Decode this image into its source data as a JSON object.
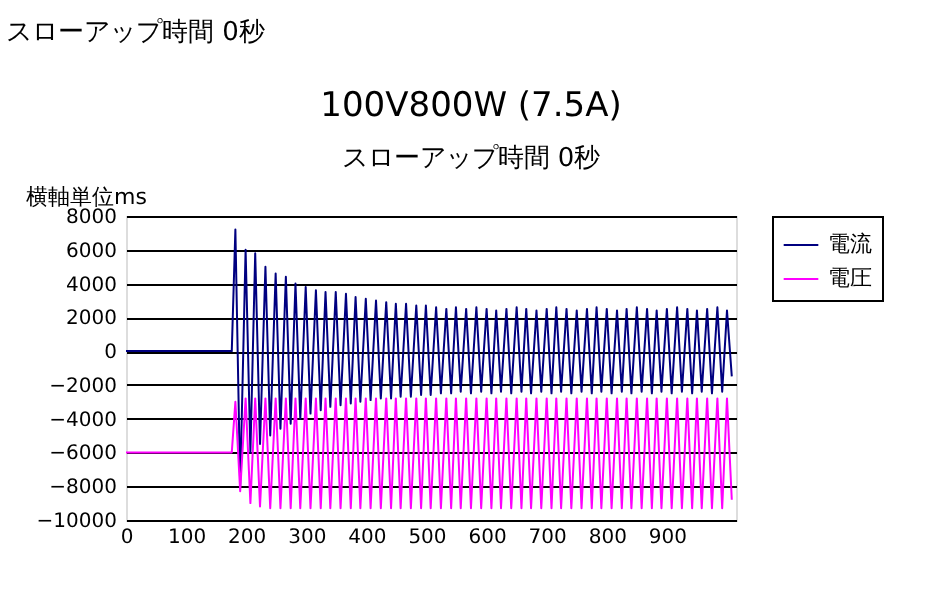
{
  "chart_data": {
    "type": "line",
    "title": "100V800W (7.5A)",
    "subtitle": "スローアップ時間 0秒",
    "annotations": [
      "スローアップ時間 0秒",
      "横軸単位ms"
    ],
    "x": [
      0,
      176,
      182,
      190,
      199,
      207,
      215,
      223,
      232,
      240,
      249,
      257,
      266,
      274,
      282,
      290,
      299,
      307,
      316,
      324,
      332,
      340,
      349,
      357,
      366,
      374,
      382,
      390,
      399,
      407,
      416,
      424,
      433,
      441,
      449,
      457,
      466,
      474,
      483,
      491,
      499,
      507,
      516,
      524,
      533,
      541,
      549,
      557,
      566,
      574,
      583,
      591,
      600,
      608,
      616,
      624,
      633,
      641,
      650,
      658,
      666,
      674,
      683,
      691,
      700,
      708,
      716,
      724,
      733,
      741,
      750,
      758,
      767,
      775,
      783,
      791,
      800,
      808,
      817,
      825,
      833,
      841,
      850,
      858,
      867,
      875,
      883,
      891,
      900,
      908,
      917,
      925,
      934,
      942,
      950,
      958,
      967,
      975,
      984,
      992,
      1000,
      1008
    ],
    "series": [
      {
        "name": "電流",
        "color": "#000080",
        "values": [
          0,
          0,
          7200,
          -8000,
          6000,
          -6000,
          5800,
          -5500,
          5000,
          -5000,
          4600,
          -4600,
          4400,
          -4300,
          4000,
          -4000,
          3800,
          -3700,
          3600,
          -3500,
          3500,
          -3300,
          3500,
          -3200,
          3400,
          -3100,
          3200,
          -3000,
          3100,
          -2900,
          3000,
          -2800,
          2900,
          -2800,
          2800,
          -2700,
          2800,
          -2700,
          2700,
          -2600,
          2700,
          -2600,
          2600,
          -2500,
          2500,
          -2500,
          2600,
          -2400,
          2500,
          -2500,
          2600,
          -2400,
          2500,
          -2500,
          2400,
          -2400,
          2500,
          -2500,
          2600,
          -2400,
          2500,
          -2500,
          2400,
          -2400,
          2500,
          -2500,
          2600,
          -2400,
          2500,
          -2500,
          2400,
          -2400,
          2500,
          -2500,
          2600,
          -2400,
          2500,
          -2500,
          2400,
          -2400,
          2500,
          -2500,
          2600,
          -2400,
          2500,
          -2500,
          2400,
          -2400,
          2500,
          -2500,
          2600,
          -2400,
          2500,
          -2500,
          2400,
          -2400,
          2500,
          -2500,
          2600,
          -2400,
          2400,
          -1500
        ]
      },
      {
        "name": "電圧",
        "color": "#ff00ff",
        "values": [
          -6000,
          -6000,
          -3000,
          -8300,
          -2800,
          -9000,
          -2800,
          -9200,
          -2800,
          -9300,
          -2800,
          -9300,
          -2800,
          -9300,
          -2800,
          -9300,
          -2800,
          -9300,
          -2800,
          -9300,
          -2800,
          -9300,
          -2800,
          -9300,
          -2800,
          -9300,
          -2800,
          -9300,
          -2800,
          -9300,
          -2800,
          -9300,
          -2800,
          -9300,
          -2800,
          -9300,
          -2800,
          -9300,
          -2800,
          -9300,
          -2800,
          -9300,
          -2800,
          -9300,
          -2800,
          -9300,
          -2800,
          -9300,
          -2800,
          -9300,
          -2800,
          -9300,
          -2800,
          -9300,
          -2800,
          -9300,
          -2800,
          -9300,
          -2800,
          -9300,
          -2800,
          -9300,
          -2800,
          -9300,
          -2800,
          -9300,
          -2800,
          -9300,
          -2800,
          -9300,
          -2800,
          -9300,
          -2800,
          -9300,
          -2800,
          -9300,
          -2800,
          -9300,
          -2800,
          -9300,
          -2800,
          -9300,
          -2800,
          -9300,
          -2800,
          -9300,
          -2800,
          -9300,
          -2800,
          -9300,
          -2800,
          -9300,
          -2800,
          -9300,
          -2800,
          -9300,
          -2800,
          -9300,
          -2800,
          -9300,
          -2800,
          -8800
        ]
      }
    ],
    "xlim": [
      0,
      1015
    ],
    "xticks": [
      0,
      100,
      200,
      300,
      400,
      500,
      600,
      700,
      800,
      900
    ],
    "ylim": [
      -10000,
      8000
    ],
    "yticks": [
      -10000,
      -8000,
      -6000,
      -4000,
      -2000,
      0,
      2000,
      4000,
      6000,
      8000
    ],
    "grid": "y",
    "legend": "right",
    "marker": "none",
    "line_style": "solid"
  }
}
